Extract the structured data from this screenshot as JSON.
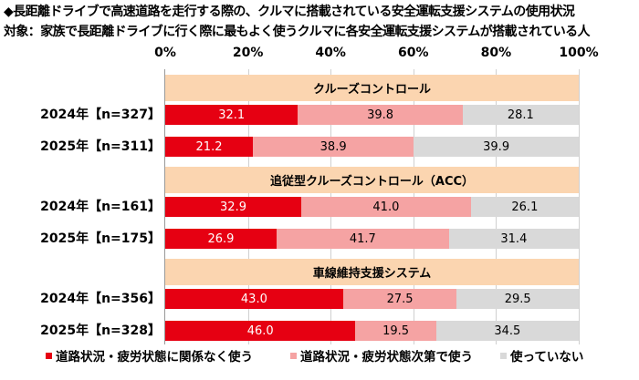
{
  "title": "◆長距離ドライブで高速道路を走行する際の、クルマに搭載されている安全運転支援システムの使用状況",
  "subtitle": "対象：家族で長距離ドライブに行く際に最もよく使うクルマに各安全運転支援システムが搭載されている人",
  "chart_data": {
    "type": "bar",
    "orientation": "horizontal-stacked-100",
    "xlim": [
      0,
      100
    ],
    "ticks": [
      "0%",
      "20%",
      "40%",
      "60%",
      "80%",
      "100%"
    ],
    "grid": true,
    "legend_position": "bottom",
    "series": [
      {
        "name": "道路状況・疲労状態に関係なく使う",
        "color": "#e60012"
      },
      {
        "name": "道路状況・疲労状態次第で使う",
        "color": "#f5a3a3"
      },
      {
        "name": "使っていない",
        "color": "#d9d9d9"
      }
    ],
    "groups": [
      {
        "title": "クルーズコントロール",
        "rows": [
          {
            "label": "2024年【n=327】",
            "values": [
              32.1,
              39.8,
              28.1
            ]
          },
          {
            "label": "2025年【n=311】",
            "values": [
              21.2,
              38.9,
              39.9
            ]
          }
        ]
      },
      {
        "title": "追従型クルーズコントロール（ACC）",
        "rows": [
          {
            "label": "2024年【n=161】",
            "values": [
              32.9,
              41.0,
              26.1
            ]
          },
          {
            "label": "2025年【n=175】",
            "values": [
              26.9,
              41.7,
              31.4
            ]
          }
        ]
      },
      {
        "title": "車線維持支援システム",
        "rows": [
          {
            "label": "2024年【n=356】",
            "values": [
              43.0,
              27.5,
              29.5
            ]
          },
          {
            "label": "2025年【n=328】",
            "values": [
              46.0,
              19.5,
              34.5
            ]
          }
        ]
      }
    ]
  }
}
